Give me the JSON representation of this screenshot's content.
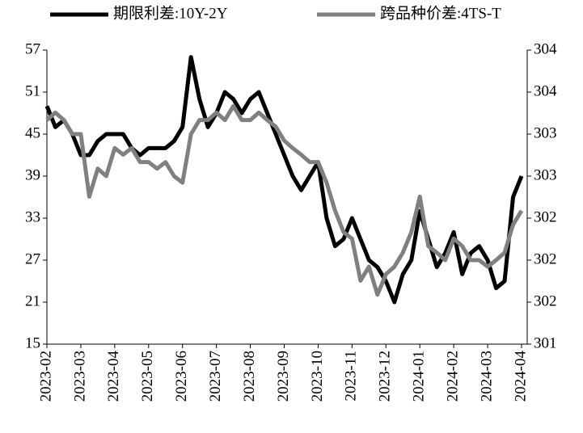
{
  "chart_data": {
    "type": "line",
    "categories": [
      "2023-02",
      null,
      null,
      null,
      "2023-03",
      null,
      null,
      null,
      "2023-04",
      null,
      null,
      null,
      "2023-05",
      null,
      null,
      null,
      "2023-06",
      null,
      null,
      null,
      "2023-07",
      null,
      null,
      null,
      "2023-08",
      null,
      null,
      null,
      "2023-09",
      null,
      null,
      null,
      "2023-10",
      null,
      null,
      null,
      "2023-11",
      null,
      null,
      null,
      "2023-12",
      null,
      null,
      null,
      "2024-01",
      null,
      null,
      null,
      "2024-02",
      null,
      null,
      null,
      "2024-03",
      null,
      null,
      null,
      "2024-04"
    ],
    "series": [
      {
        "name": "期限利差:10Y-2Y",
        "color": "#000000",
        "axis": "y",
        "values": [
          49,
          46,
          47,
          45,
          42,
          42,
          44,
          45,
          45,
          45,
          43,
          42,
          43,
          43,
          43,
          44,
          46,
          56,
          50,
          46,
          48,
          51,
          50,
          48,
          50,
          51,
          48,
          45,
          42,
          39,
          37,
          39,
          41,
          33,
          29,
          30,
          33,
          30,
          27,
          26,
          24,
          21,
          25,
          27,
          34,
          30,
          26,
          28,
          31,
          25,
          28,
          29,
          27,
          23,
          24,
          36,
          39
        ]
      },
      {
        "name": "跨品种价差:4TS-T",
        "color": "#808080",
        "axis": "y2",
        "values": [
          303.5,
          303.58,
          303.5,
          303.35,
          303.35,
          302.68,
          302.98,
          302.9,
          303.2,
          303.13,
          303.2,
          303.05,
          303.05,
          302.98,
          303.05,
          302.9,
          302.83,
          303.35,
          303.5,
          303.5,
          303.58,
          303.5,
          303.65,
          303.5,
          303.5,
          303.58,
          303.5,
          303.43,
          303.28,
          303.2,
          303.13,
          303.05,
          303.05,
          302.83,
          302.53,
          302.3,
          302.23,
          301.78,
          301.93,
          301.63,
          301.85,
          301.93,
          302.08,
          302.3,
          302.68,
          302.15,
          302.08,
          302.0,
          302.23,
          302.15,
          302.0,
          302.0,
          301.93,
          302.0,
          302.08,
          302.38,
          302.53
        ]
      }
    ],
    "ylim": [
      15,
      57
    ],
    "yticks": [
      15,
      21,
      27,
      33,
      39,
      45,
      51,
      57
    ],
    "y2lim": [
      301.1,
      304.25
    ],
    "y2ticks": [
      {
        "value": 301.1,
        "label": "301"
      },
      {
        "value": 301.55,
        "label": "302"
      },
      {
        "value": 302.0,
        "label": "302"
      },
      {
        "value": 302.45,
        "label": "302"
      },
      {
        "value": 302.9,
        "label": "303"
      },
      {
        "value": 303.35,
        "label": "303"
      },
      {
        "value": 303.8,
        "label": "304"
      },
      {
        "value": 304.25,
        "label": "304"
      }
    ],
    "legend": "top"
  }
}
